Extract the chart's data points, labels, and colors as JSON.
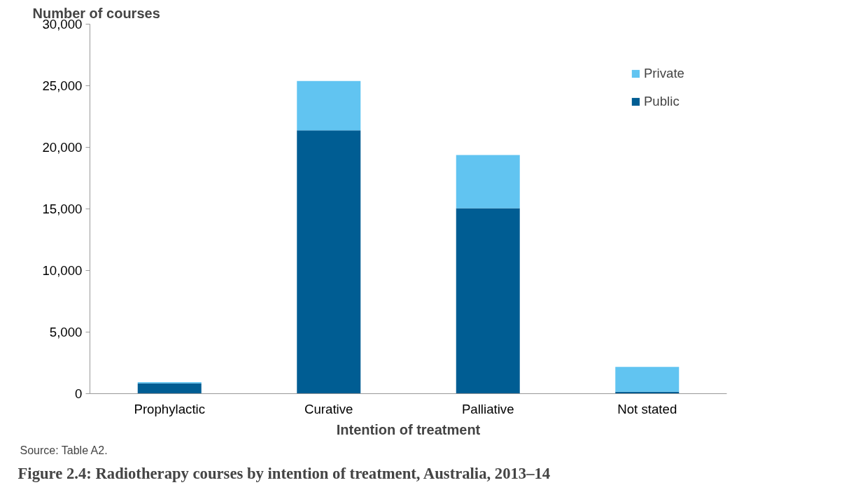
{
  "chart_data": {
    "type": "bar",
    "stacked": true,
    "title": "Figure 2.4: Radiotherapy courses by intention of treatment, Australia, 2013–14",
    "xlabel": "Intention of treatment",
    "ylabel": "Number of courses",
    "categories": [
      "Prophylactic",
      "Curative",
      "Palliative",
      "Not stated"
    ],
    "series": [
      {
        "name": "Public",
        "color": "#005d93",
        "values": [
          840,
          21380,
          15050,
          150
        ]
      },
      {
        "name": "Private",
        "color": "#61c4f1",
        "values": [
          100,
          4010,
          4330,
          2030
        ]
      }
    ],
    "ylim": [
      0,
      30000
    ],
    "yticks": [
      0,
      {
        "value": 5000,
        "label": "5,000"
      },
      {
        "value": 10000,
        "label": "10,000"
      },
      {
        "value": 15000,
        "label": "15,000"
      },
      {
        "value": 20000,
        "label": "20,000"
      },
      {
        "value": 25000,
        "label": "25,000"
      },
      {
        "value": 30000,
        "label": "30,000"
      }
    ],
    "grid": false,
    "legend": "top right",
    "annotations": [
      "Source: Table A2."
    ]
  }
}
